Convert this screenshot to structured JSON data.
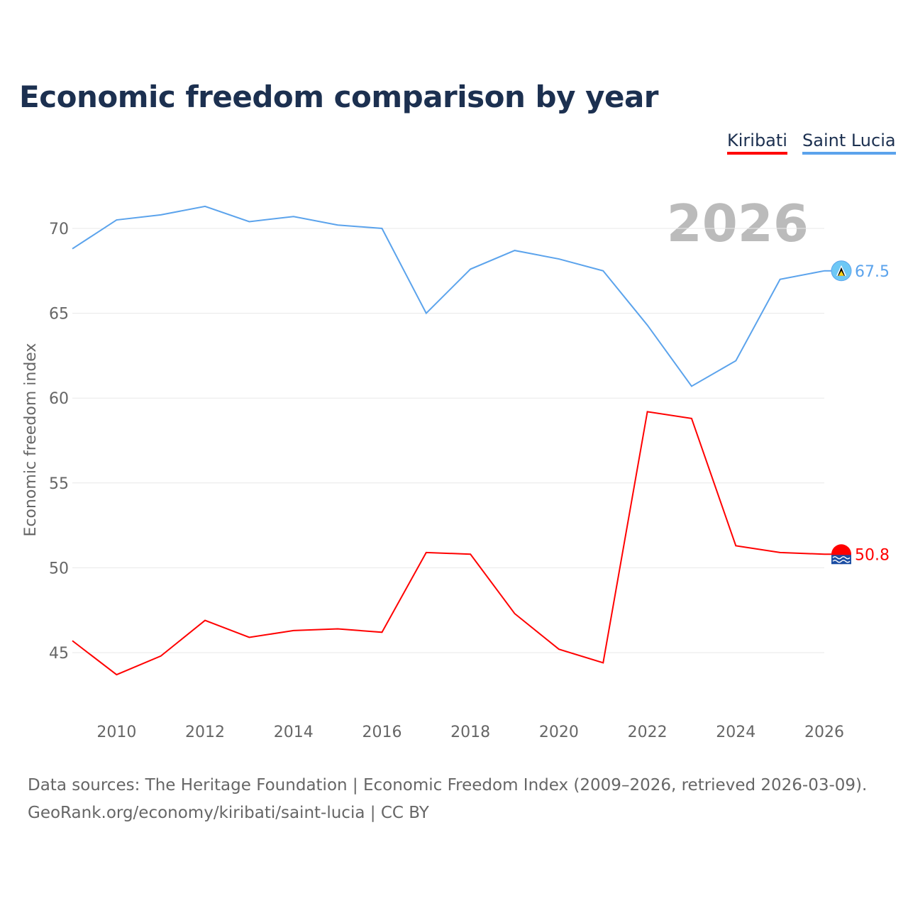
{
  "title": "Economic freedom comparison by year",
  "footer": {
    "line1": "Data sources: The Heritage Foundation | Economic Freedom Index (2009–2026, retrieved 2026-03-09).",
    "line2": "GeoRank.org/economy/kiribati/saint-lucia | CC BY"
  },
  "chart_data": {
    "type": "line",
    "title": "Economic freedom comparison by year",
    "xlabel": "",
    "ylabel": "Economic freedom index",
    "year_watermark": "2026",
    "x": [
      2009,
      2010,
      2011,
      2012,
      2013,
      2014,
      2015,
      2016,
      2017,
      2018,
      2019,
      2020,
      2021,
      2022,
      2023,
      2024,
      2025,
      2026
    ],
    "xticks": [
      "2010",
      "2012",
      "2014",
      "2016",
      "2018",
      "2020",
      "2022",
      "2024",
      "2026"
    ],
    "yticks": [
      "45",
      "50",
      "55",
      "60",
      "65",
      "70"
    ],
    "ylim": [
      41.5,
      73
    ],
    "xlim": [
      2009,
      2026
    ],
    "grid": true,
    "legend_position": "top-right",
    "series": [
      {
        "name": "Kiribati",
        "color": "#ff0000",
        "end_label": "50.8",
        "values": [
          45.7,
          43.7,
          44.8,
          46.9,
          45.9,
          46.3,
          46.4,
          46.2,
          50.9,
          50.8,
          47.3,
          45.2,
          44.4,
          59.2,
          58.8,
          51.3,
          50.9,
          50.8
        ]
      },
      {
        "name": "Saint Lucia",
        "color": "#5ba3ec",
        "end_label": "67.5",
        "values": [
          68.8,
          70.5,
          70.8,
          71.3,
          70.4,
          70.7,
          70.2,
          70.0,
          65.0,
          67.6,
          68.7,
          68.2,
          67.5,
          64.3,
          60.7,
          62.2,
          67.0,
          67.5
        ]
      }
    ]
  }
}
